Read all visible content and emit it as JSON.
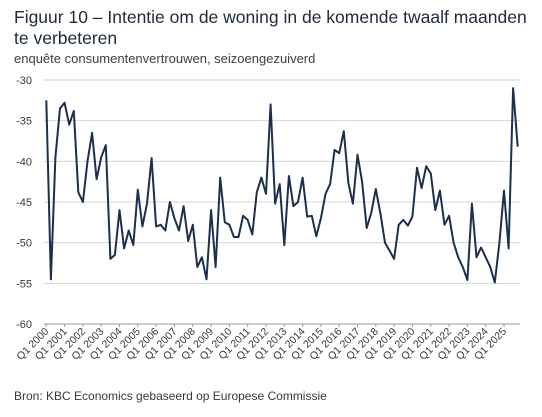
{
  "title": "Figuur 10 – Intentie om de woning in de komende twaalf maanden te verbeteren",
  "subtitle": "enquête consumentenvertrouwen, seizoengezuiverd",
  "source": "Bron: KBC Economics gebaseerd op Europese Commissie",
  "colors": {
    "line": "#1c2f4d",
    "grid": "#d6d6d6",
    "axis": "#9a9a9a"
  },
  "chart_data": {
    "type": "line",
    "title": "",
    "xlabel": "",
    "ylabel": "",
    "ylim": [
      -60,
      -30
    ],
    "yticks": [
      -30,
      -35,
      -40,
      -45,
      -50,
      -55,
      -60
    ],
    "grid": true,
    "x_tick_labels": [
      "Q1 2000",
      "Q1 2001",
      "Q1 2002",
      "Q1 2003",
      "Q1 2004",
      "Q1 2005",
      "Q1 2006",
      "Q1 2007",
      "Q1 2008",
      "Q1 2009",
      "Q1 2010",
      "Q1 2011",
      "Q1 2012",
      "Q1 2013",
      "Q1 2014",
      "Q1 2015",
      "Q1 2016",
      "Q1 2017",
      "Q1 2018",
      "Q1 2019",
      "Q1 2020",
      "Q1 2021",
      "Q1 2022",
      "Q1 2023",
      "Q1 2024",
      "Q1 2025"
    ],
    "series": [
      {
        "name": "",
        "x_start": "Q1 2000",
        "frequency": "quarterly",
        "values": [
          -32.5,
          -54.5,
          -39.5,
          -33.5,
          -32.8,
          -35.5,
          -33.8,
          -43.8,
          -45.0,
          -40.0,
          -36.5,
          -42.2,
          -39.5,
          -38.0,
          -52.0,
          -51.5,
          -46.0,
          -50.7,
          -48.5,
          -50.3,
          -43.5,
          -48.0,
          -45.2,
          -39.6,
          -48.0,
          -47.8,
          -48.5,
          -45.0,
          -47.0,
          -48.5,
          -45.5,
          -49.8,
          -47.8,
          -53.0,
          -51.8,
          -54.5,
          -46.0,
          -53.0,
          -42.0,
          -47.5,
          -47.8,
          -49.3,
          -49.3,
          -46.7,
          -47.2,
          -49.0,
          -43.8,
          -42.0,
          -44.0,
          -33.0,
          -45.2,
          -42.8,
          -50.3,
          -41.8,
          -45.5,
          -45.0,
          -42.0,
          -46.8,
          -46.7,
          -49.2,
          -47.0,
          -44.0,
          -42.8,
          -38.6,
          -39.0,
          -36.3,
          -42.7,
          -45.2,
          -39.2,
          -42.5,
          -48.2,
          -46.3,
          -43.4,
          -46.4,
          -50.0,
          -51.0,
          -52.0,
          -47.8,
          -47.2,
          -47.9,
          -46.8,
          -40.8,
          -43.3,
          -40.6,
          -41.5,
          -46.0,
          -43.6,
          -47.8,
          -46.7,
          -50.0,
          -51.8,
          -53.0,
          -54.6,
          -45.2,
          -51.8,
          -50.6,
          -51.8,
          -53.0,
          -54.9,
          -50.0,
          -43.6,
          -50.7,
          -31.0,
          -38.2
        ]
      }
    ]
  }
}
